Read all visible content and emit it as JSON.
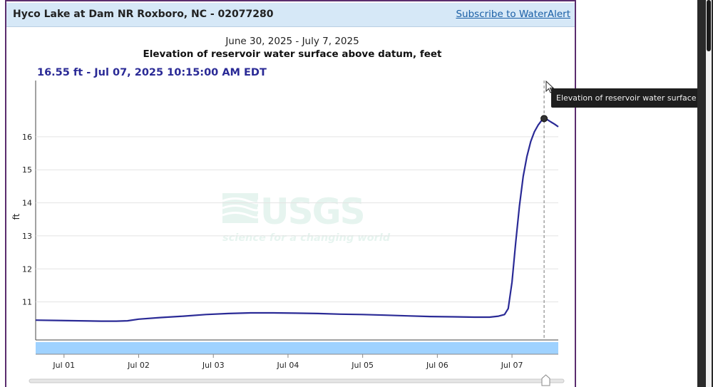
{
  "header": {
    "site_title": "Hyco Lake at Dam NR Roxboro, NC - 02077280",
    "subscribe_label": "Subscribe to WaterAlert"
  },
  "tooltip": {
    "text": "Elevation of reservoir water surface above datum,"
  },
  "watermark": {
    "logo_text": "USGS",
    "tagline": "science for a changing world"
  },
  "colors": {
    "series": "#2a2a96",
    "nav_band": "#9fd2ff",
    "header_bg": "#d6e8f7",
    "card_border": "#5b2d6e",
    "link": "#1a5fa6"
  },
  "chart_data": {
    "type": "line",
    "title": "Elevation of reservoir water surface above datum, feet",
    "subtitle": "June 30, 2025 - July 7, 2025",
    "readout": "16.55 ft - Jul 07, 2025 10:15:00 AM EDT",
    "ylabel": "ft",
    "xlabel": "",
    "y_ticks": [
      "11",
      "12",
      "13",
      "14",
      "15",
      "16"
    ],
    "y_tick_values": [
      11,
      12,
      13,
      14,
      15,
      16
    ],
    "x_ticks": [
      "Jul 01",
      "Jul 02",
      "Jul 03",
      "Jul 04",
      "Jul 05",
      "Jul 06",
      "Jul 07"
    ],
    "x_tick_days": [
      1,
      2,
      3,
      4,
      5,
      6,
      7
    ],
    "xlim_days": [
      0.62,
      7.62
    ],
    "ylim": [
      9.85,
      17.7
    ],
    "grid": true,
    "cursor_day": 7.43,
    "series": [
      {
        "x_days": [
          0.62,
          0.9,
          1.2,
          1.5,
          1.7,
          1.85,
          2.0,
          2.3,
          2.6,
          2.9,
          3.2,
          3.5,
          3.8,
          4.1,
          4.4,
          4.7,
          5.0,
          5.3,
          5.6,
          5.9,
          6.2,
          6.5,
          6.7,
          6.82,
          6.9,
          6.95,
          7.0,
          7.05,
          7.1,
          7.15,
          7.2,
          7.25,
          7.3,
          7.35,
          7.4,
          7.43,
          7.47,
          7.52,
          7.57,
          7.62
        ],
        "values": [
          10.45,
          10.44,
          10.43,
          10.42,
          10.42,
          10.43,
          10.48,
          10.53,
          10.57,
          10.62,
          10.65,
          10.67,
          10.67,
          10.66,
          10.65,
          10.63,
          10.62,
          10.6,
          10.58,
          10.56,
          10.55,
          10.54,
          10.54,
          10.57,
          10.62,
          10.8,
          11.6,
          12.8,
          13.9,
          14.8,
          15.4,
          15.85,
          16.15,
          16.35,
          16.5,
          16.55,
          16.52,
          16.45,
          16.38,
          16.3
        ]
      }
    ]
  }
}
